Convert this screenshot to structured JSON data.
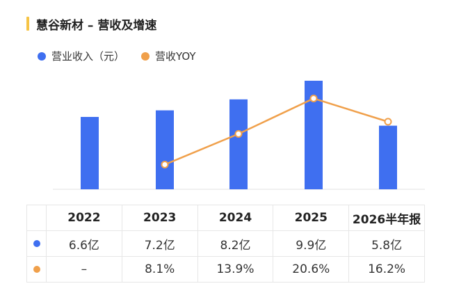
{
  "header": {
    "title": "慧谷新材 – 营收及增速"
  },
  "colors": {
    "accent_bar": "#f6c445",
    "revenue": "#3f6ff0",
    "yoy": "#f0a04b"
  },
  "chart_data": {
    "type": "bar",
    "title": "慧谷新材 – 营收及增速",
    "categories": [
      "2022",
      "2023",
      "2024",
      "2025",
      "2026半年报"
    ],
    "series": [
      {
        "name": "营业收入（元）",
        "type": "bar",
        "values": [
          6.6,
          7.2,
          8.2,
          9.9,
          5.8
        ],
        "labels": [
          "6.6亿",
          "7.2亿",
          "8.2亿",
          "9.9亿",
          "5.8亿"
        ]
      },
      {
        "name": "营收YOY",
        "type": "line",
        "values": [
          null,
          8.1,
          13.9,
          20.6,
          16.2
        ],
        "labels": [
          "–",
          "8.1%",
          "13.9%",
          "20.6%",
          "16.2%"
        ]
      }
    ],
    "legend": "top-left",
    "grid": false
  }
}
